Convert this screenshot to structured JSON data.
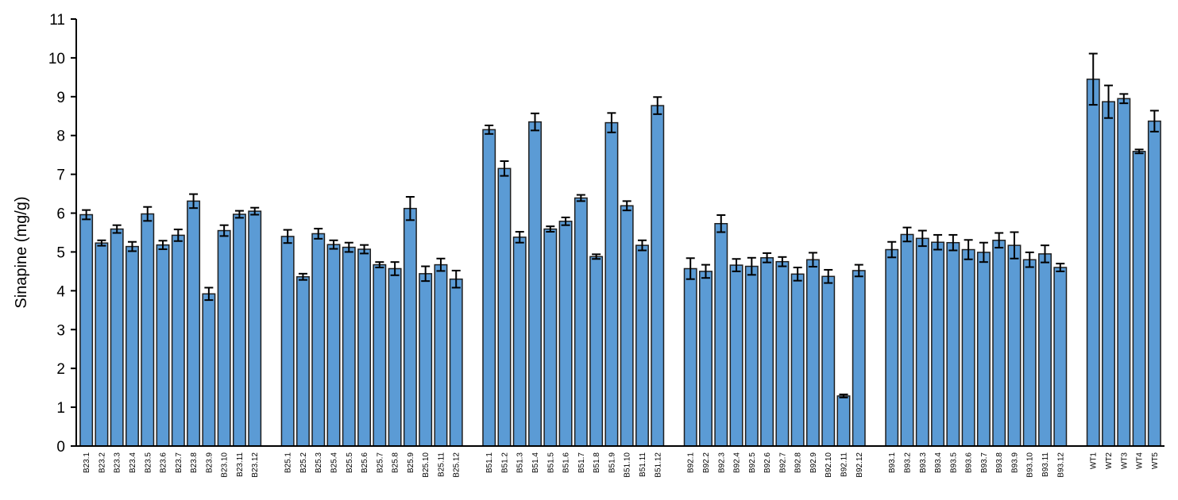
{
  "chart_data": {
    "type": "bar",
    "title": "",
    "xlabel": "",
    "ylabel": "Sinapine (mg/g)",
    "ylim": [
      0,
      11
    ],
    "yticks": [
      0,
      1,
      2,
      3,
      4,
      5,
      6,
      7,
      8,
      9,
      10,
      11
    ],
    "grid": false,
    "legend": "none",
    "bar_color": "#5b9bd5",
    "groups": [
      {
        "categories": [
          "B23.1",
          "B23.2",
          "B23.3",
          "B23.4",
          "B23.5",
          "B23.6",
          "B23.7",
          "B23.8",
          "B23.9",
          "B23.10",
          "B23.11",
          "B23.12"
        ],
        "values": [
          5.96,
          5.23,
          5.59,
          5.14,
          5.98,
          5.18,
          5.43,
          6.31,
          3.92,
          5.55,
          5.97,
          6.05
        ],
        "errors": [
          0.12,
          0.07,
          0.1,
          0.12,
          0.18,
          0.11,
          0.15,
          0.18,
          0.16,
          0.14,
          0.09,
          0.09
        ]
      },
      {
        "categories": [
          "B25.1",
          "B25.2",
          "B25.3",
          "B25.4",
          "B25.5",
          "B25.6",
          "B25.7",
          "B25.8",
          "B25.9",
          "B25.10",
          "B25.11",
          "B25.12"
        ],
        "values": [
          5.4,
          4.36,
          5.47,
          5.19,
          5.12,
          5.07,
          4.67,
          4.57,
          6.12,
          4.44,
          4.67,
          4.3
        ],
        "errors": [
          0.17,
          0.08,
          0.13,
          0.11,
          0.12,
          0.11,
          0.07,
          0.17,
          0.3,
          0.19,
          0.16,
          0.22
        ]
      },
      {
        "categories": [
          "B51.1",
          "B51.2",
          "B51.3",
          "B51.4",
          "B51.5",
          "B51.6",
          "B51.7",
          "B51.8",
          "B51.9",
          "B51.10",
          "B51.11",
          "B51.12"
        ],
        "values": [
          8.15,
          7.15,
          5.38,
          8.35,
          5.59,
          5.79,
          6.39,
          4.88,
          8.33,
          6.19,
          5.17,
          8.77
        ],
        "errors": [
          0.11,
          0.19,
          0.14,
          0.22,
          0.07,
          0.1,
          0.08,
          0.06,
          0.25,
          0.12,
          0.13,
          0.22
        ]
      },
      {
        "categories": [
          "B92.1",
          "B92.2",
          "B92.3",
          "B92.4",
          "B92.5",
          "B92.6",
          "B92.7",
          "B92.8",
          "B92.9",
          "B92.10",
          "B92.11",
          "B92.12"
        ],
        "values": [
          4.57,
          4.5,
          5.73,
          4.66,
          4.63,
          4.85,
          4.75,
          4.43,
          4.8,
          4.37,
          1.29,
          4.52
        ],
        "errors": [
          0.27,
          0.17,
          0.22,
          0.16,
          0.22,
          0.12,
          0.12,
          0.17,
          0.18,
          0.17,
          0.04,
          0.15
        ]
      },
      {
        "categories": [
          "B93.1",
          "B93.2",
          "B93.3",
          "B93.4",
          "B93.5",
          "B93.6",
          "B93.7",
          "B93.8",
          "B93.9",
          "B93.10",
          "B93.11",
          "B93.12"
        ],
        "values": [
          5.06,
          5.45,
          5.35,
          5.25,
          5.24,
          5.06,
          4.99,
          5.3,
          5.17,
          4.8,
          4.95,
          4.6
        ],
        "errors": [
          0.2,
          0.18,
          0.2,
          0.19,
          0.2,
          0.25,
          0.25,
          0.19,
          0.34,
          0.19,
          0.22,
          0.1
        ]
      },
      {
        "categories": [
          "WT1",
          "WT2",
          "WT3",
          "WT4",
          "WT5"
        ],
        "values": [
          9.45,
          8.87,
          8.95,
          7.59,
          8.37
        ],
        "errors": [
          0.66,
          0.42,
          0.12,
          0.05,
          0.27
        ]
      }
    ]
  }
}
